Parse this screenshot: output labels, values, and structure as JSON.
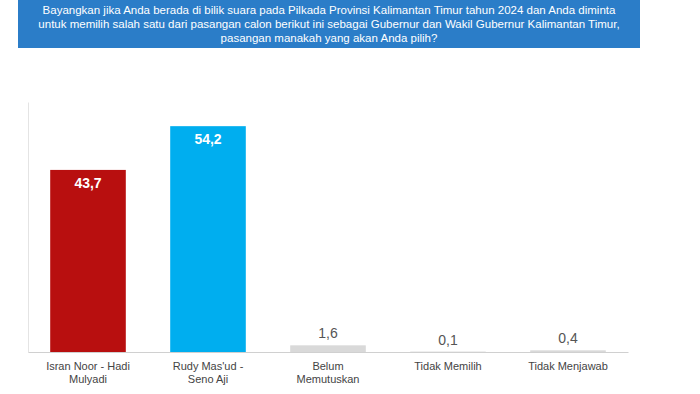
{
  "chart_data": {
    "type": "bar",
    "title": "Bayangkan jika Anda berada di bilik suara pada Pilkada Provinsi Kalimantan Timur tahun 2024 dan Anda diminta untuk memilih salah satu dari pasangan calon berikut ini sebagai Gubernur dan Wakil Gubernur Kalimantan Timur, pasangan manakah yang akan Anda pilih?",
    "categories": [
      "Isran Noor - Hadi Mulyadi",
      "Rudy Mas'ud - Seno Aji",
      "Belum Memutuskan",
      "Tidak Memilih",
      "Tidak Menjawab"
    ],
    "values": [
      43.7,
      54.2,
      1.6,
      0.1,
      0.4
    ],
    "value_labels": [
      "43,7",
      "54,2",
      "1,6",
      "0,1",
      "0,4"
    ],
    "colors": [
      "#b80f0f",
      "#00aeef",
      "#d9d9d9",
      "#d9d9d9",
      "#d9d9d9"
    ],
    "ylim": [
      0,
      60
    ],
    "data_labels": true,
    "tick_labels": false,
    "grid": false
  }
}
